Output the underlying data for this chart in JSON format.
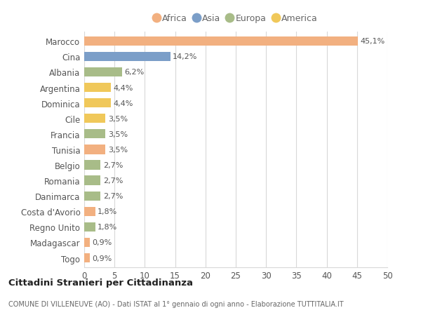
{
  "countries": [
    "Marocco",
    "Cina",
    "Albania",
    "Argentina",
    "Dominica",
    "Cile",
    "Francia",
    "Tunisia",
    "Belgio",
    "Romania",
    "Danimarca",
    "Costa d'Avorio",
    "Regno Unito",
    "Madagascar",
    "Togo"
  ],
  "values": [
    45.1,
    14.2,
    6.2,
    4.4,
    4.4,
    3.5,
    3.5,
    3.5,
    2.7,
    2.7,
    2.7,
    1.8,
    1.8,
    0.9,
    0.9
  ],
  "labels": [
    "45,1%",
    "14,2%",
    "6,2%",
    "4,4%",
    "4,4%",
    "3,5%",
    "3,5%",
    "3,5%",
    "2,7%",
    "2,7%",
    "2,7%",
    "1,8%",
    "1,8%",
    "0,9%",
    "0,9%"
  ],
  "continents": [
    "Africa",
    "Asia",
    "Europa",
    "America",
    "America",
    "America",
    "Europa",
    "Africa",
    "Europa",
    "Europa",
    "Europa",
    "Africa",
    "Europa",
    "Africa",
    "Africa"
  ],
  "colors": {
    "Africa": "#F2B080",
    "Asia": "#7B9EC8",
    "Europa": "#A8BC88",
    "America": "#F0C85A"
  },
  "legend_order": [
    "Africa",
    "Asia",
    "Europa",
    "America"
  ],
  "legend_colors": [
    "#F2B080",
    "#7B9EC8",
    "#A8BC88",
    "#F0C85A"
  ],
  "xlim": [
    0,
    50
  ],
  "xticks": [
    0,
    5,
    10,
    15,
    20,
    25,
    30,
    35,
    40,
    45,
    50
  ],
  "title": "Cittadini Stranieri per Cittadinanza",
  "subtitle": "COMUNE DI VILLENEUVE (AO) - Dati ISTAT al 1° gennaio di ogni anno - Elaborazione TUTTITALIA.IT",
  "bg_color": "#ffffff",
  "grid_color": "#d8d8d8",
  "bar_height": 0.6
}
